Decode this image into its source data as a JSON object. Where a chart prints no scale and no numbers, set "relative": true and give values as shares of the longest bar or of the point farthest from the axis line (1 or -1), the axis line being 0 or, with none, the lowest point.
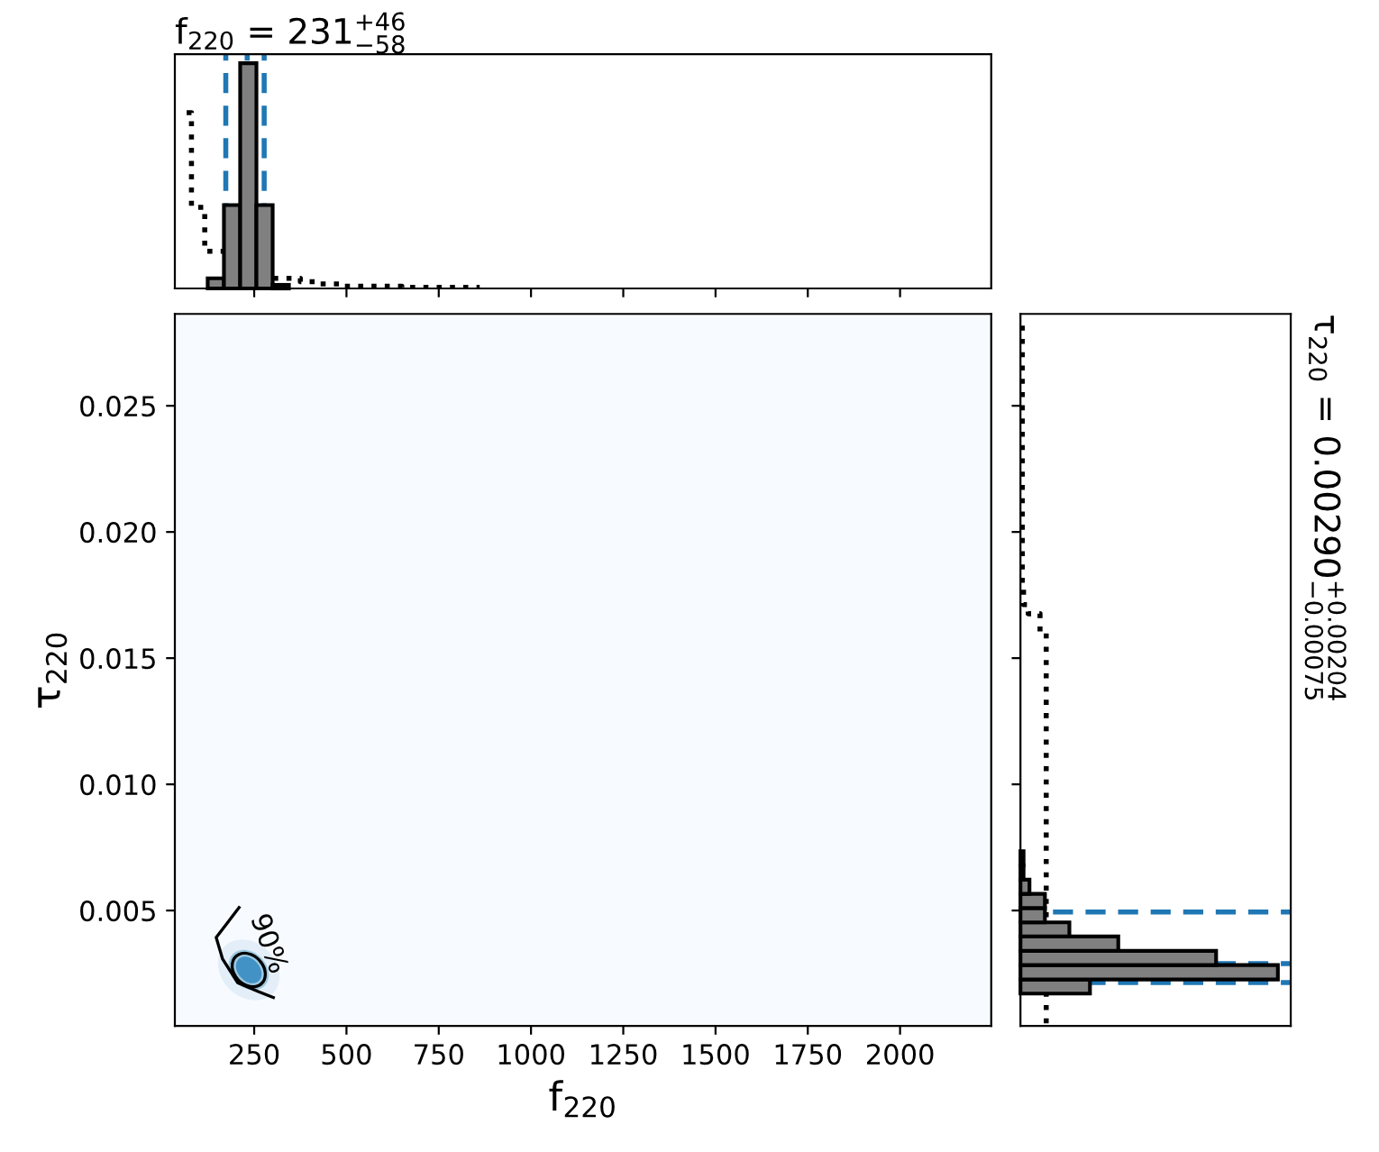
{
  "chart_data": [
    {
      "type": "histogram",
      "title": "f$_{220}$ = 231$^{+46}$$_{−58}$",
      "relative": true,
      "xlim": [
        35,
        2247
      ],
      "xticks": [
        250,
        500,
        750,
        1000,
        1250,
        1500,
        1750,
        2000
      ],
      "tick_labels": false,
      "grid": false,
      "series": [
        {
          "type": "histogram",
          "color": "#808080",
          "bins": [
            80,
            124,
            168,
            212,
            256,
            300,
            344
          ],
          "values": [
            0,
            0.045,
            0.37,
            1,
            0.37,
            0.016
          ]
        },
        {
          "type": "step",
          "color": "#000000",
          "line_style": "dotted",
          "x": [
            67,
            80,
            116,
            172,
            213,
            261,
            302,
            375,
            423,
            488,
            650,
            861
          ],
          "values": [
            0.78,
            0.36,
            0.165,
            0.1,
            0.072,
            0.06,
            0.045,
            0.03,
            0.02,
            0.01,
            0.005,
            0.005
          ]
        }
      ],
      "ref_lines": [
        {
          "axis": "x",
          "value": 173,
          "color": "#1f77b4",
          "line_style": "dashed"
        },
        {
          "axis": "x",
          "value": 231,
          "color": "#1f77b4",
          "line_style": "dashed"
        },
        {
          "axis": "x",
          "value": 277,
          "color": "#1f77b4",
          "line_style": "dashed"
        }
      ]
    },
    {
      "type": "line",
      "xlabel": "f$_{220}$",
      "ylabel": "τ$_{220}$",
      "xlim": [
        35,
        2247
      ],
      "ylim": [
        0.00043,
        0.02864
      ],
      "xticks": [
        250,
        500,
        750,
        1000,
        1250,
        1500,
        1750,
        2000
      ],
      "yticks": [
        0.005,
        {
          "value": 0.01,
          "label": "0.010"
        },
        0.015,
        {
          "value": 0.02,
          "label": "0.020"
        },
        0.025
      ],
      "series": [
        {
          "color": "#000000",
          "x": [
            209,
            147,
            164,
            205,
            261,
            302
          ],
          "values": [
            0.00512,
            0.00393,
            0.00309,
            0.00214,
            0.00179,
            0.00155
          ]
        }
      ],
      "annotations": [
        "90%"
      ]
    },
    {
      "type": "histogram",
      "orientation": "horizontal",
      "ylabel": "τ$_{220}$ = 0.00290$^{+0.00204}$$_{−0.00075}$",
      "relative": true,
      "ylim": [
        0.00043,
        0.02864
      ],
      "yticks": [
        0.005,
        0.01,
        0.015,
        0.02,
        0.025
      ],
      "tick_labels": false,
      "grid": false,
      "series": [
        {
          "type": "histogram",
          "color": "#808080",
          "bins": [
            0.00171,
            0.00227,
            0.00284,
            0.0034,
            0.00397,
            0.00453,
            0.0051,
            0.00566,
            0.00622,
            0.00679,
            0.00735
          ],
          "values": [
            0.27,
            1,
            0.76,
            0.38,
            0.19,
            0.095,
            0.095,
            0.035,
            0.012,
            0.012
          ]
        },
        {
          "type": "step",
          "color": "#000000",
          "line_style": "dotted",
          "x": [
            0.00053,
            0.01606,
            0.01676,
            0.01712,
            0.01782,
            0.0284
          ],
          "values": [
            0.1,
            0.076,
            0.03,
            0.012,
            0.007,
            0.007
          ]
        }
      ],
      "ref_lines": [
        {
          "axis": "y",
          "value": 0.00215,
          "color": "#1f77b4",
          "line_style": "dashed"
        },
        {
          "axis": "y",
          "value": 0.0029,
          "color": "#1f77b4",
          "line_style": "dashed"
        },
        {
          "axis": "y",
          "value": 0.00494,
          "color": "#1f77b4",
          "line_style": "dashed"
        }
      ]
    }
  ]
}
